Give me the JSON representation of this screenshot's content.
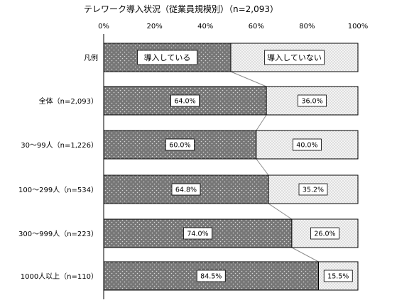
{
  "chart_data": {
    "type": "bar",
    "orientation": "horizontal",
    "stacked": "percent",
    "title": "テレワーク導入状況（従業員規模別）（n=2,093）",
    "x_ticks": [
      "0%",
      "20%",
      "40%",
      "60%",
      "80%",
      "100%"
    ],
    "xlim": [
      0,
      100
    ],
    "legend": {
      "label": "凡例",
      "entries": [
        "導入している",
        "導入していない"
      ],
      "placement": "first-row"
    },
    "categories": [
      "全体（n=2,093）",
      "30～99人（n=1,226）",
      "100～299人（n=534）",
      "300～999人（n=223）",
      "1000人以上（n=110）"
    ],
    "series": [
      {
        "name": "導入している",
        "values": [
          64.0,
          60.0,
          64.8,
          74.0,
          84.5
        ],
        "labels": [
          "64.0%",
          "60.0%",
          "64.8%",
          "74.0%",
          "84.5%"
        ]
      },
      {
        "name": "導入していない",
        "values": [
          36.0,
          40.0,
          35.2,
          26.0,
          15.5
        ],
        "labels": [
          "36.0%",
          "40.0%",
          "35.2%",
          "26.0%",
          "15.5%"
        ]
      }
    ],
    "connector_lines": true,
    "colors": {
      "introduced": "#7a7a7a",
      "not_introduced": "#e6e6e6",
      "border": "#000000",
      "connector": "#8c8c8c"
    }
  }
}
